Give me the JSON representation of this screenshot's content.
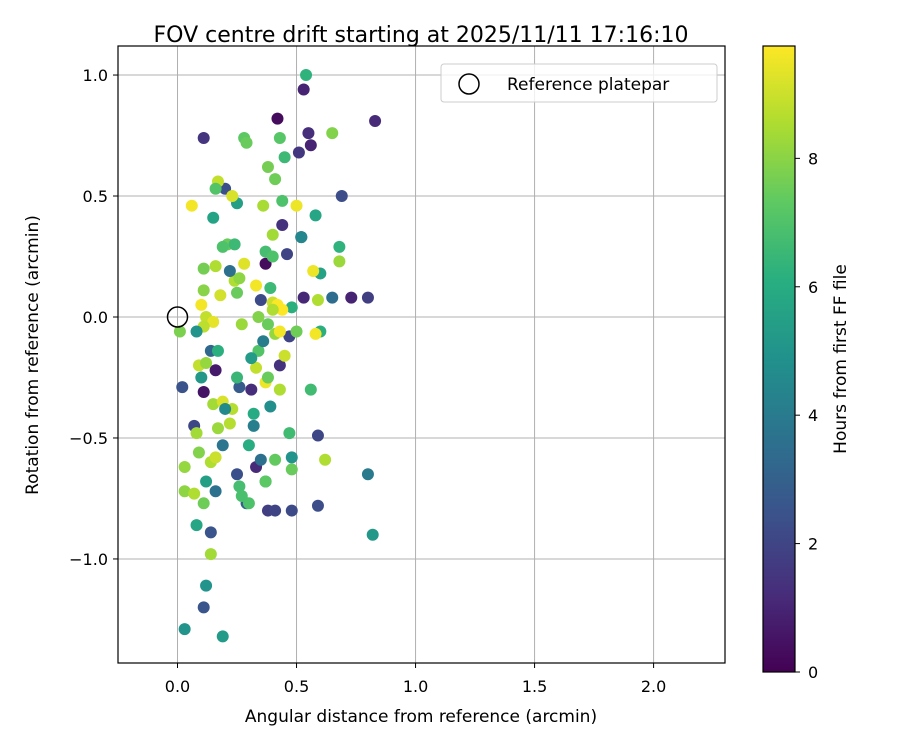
{
  "chart_data": {
    "type": "scatter",
    "title": "FOV centre drift starting at 2025/11/11 17:16:10",
    "xlabel": "Angular distance from reference (arcmin)",
    "ylabel": "Rotation from reference (arcmin)",
    "xlim": [
      -0.25,
      2.3
    ],
    "ylim": [
      -1.43,
      1.12
    ],
    "xticks": [
      0.0,
      0.5,
      1.0,
      1.5,
      2.0
    ],
    "xtick_labels": [
      "0.0",
      "0.5",
      "1.0",
      "1.5",
      "2.0"
    ],
    "yticks": [
      -1.0,
      -0.5,
      0.0,
      0.5,
      1.0
    ],
    "ytick_labels": [
      "−1.0",
      "−0.5",
      "0.0",
      "0.5",
      "1.0"
    ],
    "grid": true,
    "legend": {
      "position": "top-right",
      "label": "Reference platepar"
    },
    "reference": {
      "x": 0.0,
      "y": 0.0
    },
    "colorbar": {
      "label": "Hours from first FF file",
      "colormap": "viridis",
      "range": [
        0,
        9.75
      ],
      "ticks": [
        0,
        2,
        4,
        6,
        8
      ],
      "tick_labels": [
        "0",
        "2",
        "4",
        "6",
        "8"
      ]
    },
    "points": [
      {
        "x": 0.42,
        "y": 0.82,
        "h": 0.3
      },
      {
        "x": 0.83,
        "y": 0.81,
        "h": 1.2
      },
      {
        "x": 0.53,
        "y": 0.94,
        "h": 1.0
      },
      {
        "x": 0.11,
        "y": 0.74,
        "h": 1.5
      },
      {
        "x": 0.55,
        "y": 0.76,
        "h": 1.3
      },
      {
        "x": 0.56,
        "y": 0.71,
        "h": 1.0
      },
      {
        "x": 0.51,
        "y": 0.68,
        "h": 1.6
      },
      {
        "x": 0.69,
        "y": 0.5,
        "h": 2.3
      },
      {
        "x": 0.2,
        "y": 0.53,
        "h": 2.4
      },
      {
        "x": 0.52,
        "y": 0.33,
        "h": 3.3
      },
      {
        "x": 0.44,
        "y": 0.38,
        "h": 1.4
      },
      {
        "x": 0.46,
        "y": 0.26,
        "h": 2.0
      },
      {
        "x": 0.37,
        "y": 0.22,
        "h": 0.3
      },
      {
        "x": 0.35,
        "y": 0.07,
        "h": 2.2
      },
      {
        "x": 0.47,
        "y": -0.08,
        "h": 2.0
      },
      {
        "x": 0.43,
        "y": -0.2,
        "h": 1.4
      },
      {
        "x": 0.31,
        "y": -0.3,
        "h": 1.3
      },
      {
        "x": 0.11,
        "y": -0.31,
        "h": 0.5
      },
      {
        "x": 0.16,
        "y": -0.22,
        "h": 0.7
      },
      {
        "x": 0.14,
        "y": -0.14,
        "h": 3.3
      },
      {
        "x": 0.02,
        "y": -0.29,
        "h": 2.5
      },
      {
        "x": 0.07,
        "y": -0.45,
        "h": 2.1
      },
      {
        "x": 0.73,
        "y": 0.08,
        "h": 1.0
      },
      {
        "x": 0.8,
        "y": 0.08,
        "h": 1.8
      },
      {
        "x": 0.65,
        "y": 0.08,
        "h": 3.5
      },
      {
        "x": 0.53,
        "y": 0.08,
        "h": 1.1
      },
      {
        "x": 0.26,
        "y": -0.29,
        "h": 2.8
      },
      {
        "x": 0.33,
        "y": -0.62,
        "h": 1.2
      },
      {
        "x": 0.25,
        "y": -0.65,
        "h": 2.4
      },
      {
        "x": 0.29,
        "y": -0.77,
        "h": 3.0
      },
      {
        "x": 0.38,
        "y": -0.8,
        "h": 1.8
      },
      {
        "x": 0.48,
        "y": -0.8,
        "h": 2.2
      },
      {
        "x": 0.41,
        "y": -0.8,
        "h": 2.0
      },
      {
        "x": 0.59,
        "y": -0.78,
        "h": 2.3
      },
      {
        "x": 0.59,
        "y": -0.49,
        "h": 2.1
      },
      {
        "x": 0.14,
        "y": -0.89,
        "h": 2.6
      },
      {
        "x": 0.11,
        "y": -1.2,
        "h": 2.6
      },
      {
        "x": 0.03,
        "y": -1.29,
        "h": 5.0
      },
      {
        "x": 0.19,
        "y": -1.32,
        "h": 5.3
      },
      {
        "x": 0.12,
        "y": -1.11,
        "h": 5.0
      },
      {
        "x": 0.8,
        "y": -0.65,
        "h": 4.0
      },
      {
        "x": 0.82,
        "y": -0.9,
        "h": 5.2
      },
      {
        "x": 0.54,
        "y": 1.0,
        "h": 6.3
      },
      {
        "x": 0.45,
        "y": 0.66,
        "h": 6.6
      },
      {
        "x": 0.58,
        "y": 0.42,
        "h": 5.8
      },
      {
        "x": 0.15,
        "y": 0.41,
        "h": 5.7
      },
      {
        "x": 0.25,
        "y": 0.47,
        "h": 5.5
      },
      {
        "x": 0.48,
        "y": 0.04,
        "h": 6.2
      },
      {
        "x": 0.6,
        "y": -0.06,
        "h": 6.2
      },
      {
        "x": 0.6,
        "y": 0.18,
        "h": 5.6
      },
      {
        "x": 0.68,
        "y": 0.29,
        "h": 6.3
      },
      {
        "x": 0.37,
        "y": 0.27,
        "h": 6.8
      },
      {
        "x": 0.25,
        "y": 0.1,
        "h": 7.5
      },
      {
        "x": 0.39,
        "y": 0.12,
        "h": 6.6
      },
      {
        "x": 0.19,
        "y": -0.53,
        "h": 3.8
      },
      {
        "x": 0.16,
        "y": -0.72,
        "h": 3.7
      },
      {
        "x": 0.32,
        "y": -0.45,
        "h": 4.2
      },
      {
        "x": 0.35,
        "y": -0.59,
        "h": 3.6
      },
      {
        "x": 0.48,
        "y": -0.58,
        "h": 5.0
      },
      {
        "x": 0.37,
        "y": -0.68,
        "h": 5.4
      },
      {
        "x": 0.39,
        "y": -0.37,
        "h": 4.8
      },
      {
        "x": 0.32,
        "y": -0.4,
        "h": 6.0
      },
      {
        "x": 0.12,
        "y": -0.68,
        "h": 5.5
      },
      {
        "x": 0.08,
        "y": -0.86,
        "h": 5.8
      },
      {
        "x": 0.1,
        "y": -0.25,
        "h": 5.2
      },
      {
        "x": 0.47,
        "y": -0.48,
        "h": 6.7
      },
      {
        "x": 0.25,
        "y": -0.25,
        "h": 6.5
      },
      {
        "x": 0.3,
        "y": -0.53,
        "h": 6.1
      },
      {
        "x": 0.41,
        "y": -0.59,
        "h": 7.4
      },
      {
        "x": 0.56,
        "y": -0.3,
        "h": 6.7
      },
      {
        "x": 0.48,
        "y": -0.63,
        "h": 7.5
      },
      {
        "x": 0.43,
        "y": -0.3,
        "h": 8.6
      },
      {
        "x": 0.38,
        "y": 0.62,
        "h": 7.7
      },
      {
        "x": 0.28,
        "y": 0.74,
        "h": 7.3
      },
      {
        "x": 0.29,
        "y": 0.72,
        "h": 7.5
      },
      {
        "x": 0.65,
        "y": 0.76,
        "h": 7.9
      },
      {
        "x": 0.43,
        "y": 0.74,
        "h": 7.2
      },
      {
        "x": 0.41,
        "y": 0.57,
        "h": 7.6
      },
      {
        "x": 0.44,
        "y": 0.48,
        "h": 7.0
      },
      {
        "x": 0.36,
        "y": 0.46,
        "h": 8.5
      },
      {
        "x": 0.5,
        "y": 0.46,
        "h": 9.5
      },
      {
        "x": 0.06,
        "y": 0.46,
        "h": 9.6
      },
      {
        "x": 0.17,
        "y": 0.56,
        "h": 8.9
      },
      {
        "x": 0.23,
        "y": 0.5,
        "h": 9.2
      },
      {
        "x": 0.16,
        "y": 0.53,
        "h": 7.1
      },
      {
        "x": 0.21,
        "y": 0.3,
        "h": 7.5
      },
      {
        "x": 0.19,
        "y": 0.29,
        "h": 7.0
      },
      {
        "x": 0.4,
        "y": 0.34,
        "h": 8.4
      },
      {
        "x": 0.4,
        "y": 0.25,
        "h": 7.0
      },
      {
        "x": 0.11,
        "y": 0.2,
        "h": 7.7
      },
      {
        "x": 0.16,
        "y": 0.21,
        "h": 8.6
      },
      {
        "x": 0.28,
        "y": 0.22,
        "h": 9.3
      },
      {
        "x": 0.24,
        "y": 0.15,
        "h": 8.6
      },
      {
        "x": 0.26,
        "y": 0.16,
        "h": 8.1
      },
      {
        "x": 0.33,
        "y": 0.13,
        "h": 9.6
      },
      {
        "x": 0.57,
        "y": 0.19,
        "h": 9.5
      },
      {
        "x": 0.59,
        "y": 0.07,
        "h": 8.6
      },
      {
        "x": 0.68,
        "y": 0.23,
        "h": 8.3
      },
      {
        "x": 0.11,
        "y": 0.11,
        "h": 8.0
      },
      {
        "x": 0.18,
        "y": 0.09,
        "h": 9.1
      },
      {
        "x": 0.1,
        "y": 0.05,
        "h": 9.6
      },
      {
        "x": 0.12,
        "y": 0.0,
        "h": 8.9
      },
      {
        "x": 0.4,
        "y": 0.06,
        "h": 9.0
      },
      {
        "x": 0.42,
        "y": 0.05,
        "h": 9.7
      },
      {
        "x": 0.44,
        "y": 0.03,
        "h": 9.8
      },
      {
        "x": 0.4,
        "y": 0.03,
        "h": 8.6
      },
      {
        "x": 0.34,
        "y": 0.0,
        "h": 7.9
      },
      {
        "x": 0.38,
        "y": -0.03,
        "h": 7.5
      },
      {
        "x": 0.27,
        "y": -0.03,
        "h": 8.3
      },
      {
        "x": 0.15,
        "y": -0.02,
        "h": 9.4
      },
      {
        "x": 0.11,
        "y": -0.04,
        "h": 8.8
      },
      {
        "x": 0.01,
        "y": -0.06,
        "h": 7.8
      },
      {
        "x": 0.08,
        "y": -0.06,
        "h": 5.0
      },
      {
        "x": 0.17,
        "y": -0.14,
        "h": 6.2
      },
      {
        "x": 0.34,
        "y": -0.14,
        "h": 7.1
      },
      {
        "x": 0.41,
        "y": -0.07,
        "h": 8.2
      },
      {
        "x": 0.43,
        "y": -0.06,
        "h": 9.6
      },
      {
        "x": 0.45,
        "y": -0.16,
        "h": 9.0
      },
      {
        "x": 0.5,
        "y": -0.06,
        "h": 7.6
      },
      {
        "x": 0.58,
        "y": -0.07,
        "h": 9.6
      },
      {
        "x": 0.09,
        "y": -0.2,
        "h": 8.9
      },
      {
        "x": 0.12,
        "y": -0.19,
        "h": 8.2
      },
      {
        "x": 0.33,
        "y": -0.21,
        "h": 8.9
      },
      {
        "x": 0.37,
        "y": -0.27,
        "h": 9.5
      },
      {
        "x": 0.38,
        "y": -0.25,
        "h": 7.5
      },
      {
        "x": 0.15,
        "y": -0.36,
        "h": 8.4
      },
      {
        "x": 0.19,
        "y": -0.35,
        "h": 9.2
      },
      {
        "x": 0.23,
        "y": -0.38,
        "h": 8.7
      },
      {
        "x": 0.08,
        "y": -0.48,
        "h": 8.4
      },
      {
        "x": 0.17,
        "y": -0.46,
        "h": 8.3
      },
      {
        "x": 0.22,
        "y": -0.44,
        "h": 8.7
      },
      {
        "x": 0.03,
        "y": -0.62,
        "h": 8.2
      },
      {
        "x": 0.09,
        "y": -0.56,
        "h": 7.9
      },
      {
        "x": 0.14,
        "y": -0.6,
        "h": 8.6
      },
      {
        "x": 0.16,
        "y": -0.58,
        "h": 9.0
      },
      {
        "x": 0.62,
        "y": -0.59,
        "h": 8.6
      },
      {
        "x": 0.03,
        "y": -0.72,
        "h": 8.1
      },
      {
        "x": 0.07,
        "y": -0.73,
        "h": 8.6
      },
      {
        "x": 0.11,
        "y": -0.77,
        "h": 7.6
      },
      {
        "x": 0.14,
        "y": -0.98,
        "h": 8.4
      },
      {
        "x": 0.3,
        "y": -0.77,
        "h": 7.0
      },
      {
        "x": 0.26,
        "y": -0.7,
        "h": 6.8
      },
      {
        "x": 0.27,
        "y": -0.74,
        "h": 6.9
      },
      {
        "x": 0.37,
        "y": -0.68,
        "h": 7.3
      },
      {
        "x": 0.22,
        "y": 0.19,
        "h": 3.6
      },
      {
        "x": 0.24,
        "y": 0.3,
        "h": 6.6
      },
      {
        "x": 0.31,
        "y": -0.17,
        "h": 5.3
      },
      {
        "x": 0.36,
        "y": -0.1,
        "h": 4.1
      },
      {
        "x": 0.2,
        "y": -0.38,
        "h": 4.6
      },
      {
        "x": 0.52,
        "y": 0.33,
        "h": 4.5
      }
    ]
  }
}
